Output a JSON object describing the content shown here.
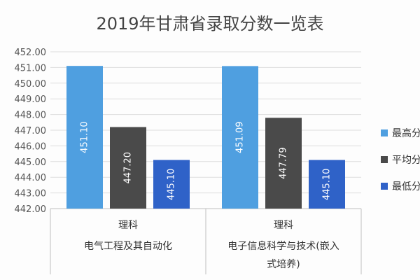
{
  "chart_data": {
    "type": "bar",
    "title": "2019年甘肃省录取分数一览表",
    "ylim": [
      442,
      452
    ],
    "y_ticks": [
      "442.00",
      "443.00",
      "444.00",
      "445.00",
      "446.00",
      "447.00",
      "448.00",
      "449.00",
      "450.00",
      "451.00",
      "452.00"
    ],
    "grid": true,
    "legend_position": "right",
    "categories": [
      {
        "group": "理科",
        "lines": [
          "电气工程及其自动化"
        ]
      },
      {
        "group": "理科",
        "lines": [
          "电子信息科学与技术(嵌入",
          "式培养)"
        ]
      }
    ],
    "series": [
      {
        "name": "最高分",
        "legend_visible": "最高分",
        "color": "#4f9fe0",
        "values": [
          451.1,
          451.09
        ],
        "labels": [
          "451.10",
          "451.09"
        ]
      },
      {
        "name": "平均分",
        "legend_visible": "平均分",
        "color": "#4a4a4a",
        "values": [
          447.2,
          447.79
        ],
        "labels": [
          "447.20",
          "447.79"
        ]
      },
      {
        "name": "最低分",
        "legend_visible": "最低分",
        "color": "#2f62c8",
        "values": [
          445.1,
          445.1
        ],
        "labels": [
          "445.10",
          "445.10"
        ]
      }
    ]
  }
}
